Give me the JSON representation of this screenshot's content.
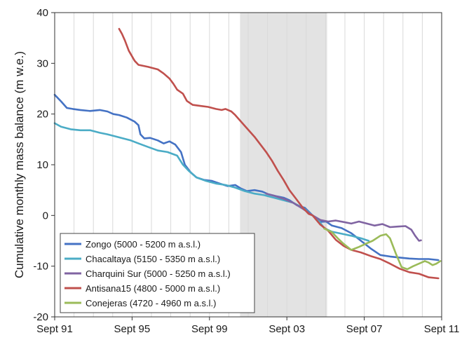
{
  "chart_data": {
    "type": "line",
    "title": "",
    "xlabel": "",
    "ylabel": "Cumulative monthly mass balance (m w.e.)",
    "xlim": [
      1991.67,
      2011.67
    ],
    "ylim": [
      -20,
      40
    ],
    "x_ticks": [
      {
        "value": 1991.67,
        "label": "Sept 91"
      },
      {
        "value": 1995.67,
        "label": "Sept 95"
      },
      {
        "value": 1999.67,
        "label": "Sept 99"
      },
      {
        "value": 2003.67,
        "label": "Sept 03"
      },
      {
        "value": 2007.67,
        "label": "Sept 07"
      },
      {
        "value": 2011.67,
        "label": "Sept 11"
      }
    ],
    "y_ticks": [
      -20,
      -10,
      0,
      10,
      20,
      30,
      40
    ],
    "y_tick_labels": [
      "-20",
      "-10",
      "0",
      "10",
      "20",
      "30",
      "40"
    ],
    "grid": "vertical-only",
    "shaded_region": [
      2001.25,
      2005.75
    ],
    "legend_position": "bottom-left",
    "series": [
      {
        "name": "Zongo (5000 - 5200 m a.s.l.)",
        "color": "#4472c4",
        "points": [
          [
            1991.67,
            23.8
          ],
          [
            1992.0,
            22.5
          ],
          [
            1992.3,
            21.2
          ],
          [
            1992.6,
            21.0
          ],
          [
            1993.0,
            20.8
          ],
          [
            1993.5,
            20.6
          ],
          [
            1994.0,
            20.8
          ],
          [
            1994.4,
            20.5
          ],
          [
            1994.7,
            20.0
          ],
          [
            1995.0,
            19.8
          ],
          [
            1995.4,
            19.3
          ],
          [
            1995.8,
            18.5
          ],
          [
            1996.0,
            17.8
          ],
          [
            1996.1,
            16.0
          ],
          [
            1996.3,
            15.2
          ],
          [
            1996.6,
            15.3
          ],
          [
            1997.0,
            14.8
          ],
          [
            1997.3,
            14.2
          ],
          [
            1997.6,
            14.6
          ],
          [
            1997.9,
            14.0
          ],
          [
            1998.2,
            12.5
          ],
          [
            1998.4,
            10.0
          ],
          [
            1998.7,
            8.5
          ],
          [
            1999.0,
            7.5
          ],
          [
            1999.4,
            7.0
          ],
          [
            1999.8,
            6.8
          ],
          [
            2000.2,
            6.3
          ],
          [
            2000.6,
            5.8
          ],
          [
            2001.0,
            6.0
          ],
          [
            2001.3,
            5.3
          ],
          [
            2001.6,
            4.8
          ],
          [
            2002.0,
            5.0
          ],
          [
            2002.4,
            4.7
          ],
          [
            2002.7,
            4.2
          ],
          [
            2003.1,
            3.8
          ],
          [
            2003.5,
            3.5
          ],
          [
            2003.8,
            3.0
          ],
          [
            2004.2,
            2.0
          ],
          [
            2004.6,
            1.5
          ],
          [
            2005.0,
            0.0
          ],
          [
            2005.3,
            -1.3
          ],
          [
            2005.7,
            -1.2
          ],
          [
            2006.0,
            -2.0
          ],
          [
            2006.5,
            -2.5
          ],
          [
            2007.0,
            -3.5
          ],
          [
            2007.5,
            -5.0
          ],
          [
            2008.0,
            -6.5
          ],
          [
            2008.5,
            -7.8
          ],
          [
            2009.0,
            -8.1
          ],
          [
            2009.5,
            -8.3
          ],
          [
            2010.0,
            -8.5
          ],
          [
            2010.5,
            -8.6
          ],
          [
            2011.0,
            -8.6
          ],
          [
            2011.5,
            -8.8
          ]
        ]
      },
      {
        "name": "Chacaltaya (5150 - 5350 m a.s.l.)",
        "color": "#4bacc6",
        "points": [
          [
            1991.67,
            18.2
          ],
          [
            1992.0,
            17.5
          ],
          [
            1992.5,
            17.0
          ],
          [
            1993.0,
            16.8
          ],
          [
            1993.5,
            16.8
          ],
          [
            1994.0,
            16.3
          ],
          [
            1994.4,
            16.0
          ],
          [
            1994.8,
            15.6
          ],
          [
            1995.2,
            15.2
          ],
          [
            1995.6,
            14.8
          ],
          [
            1996.0,
            14.2
          ],
          [
            1996.5,
            13.5
          ],
          [
            1997.0,
            12.8
          ],
          [
            1997.5,
            12.5
          ],
          [
            1998.0,
            11.8
          ],
          [
            1998.3,
            10.0
          ],
          [
            1998.6,
            8.8
          ],
          [
            1999.0,
            7.5
          ],
          [
            1999.5,
            6.8
          ],
          [
            2000.0,
            6.3
          ],
          [
            2000.5,
            6.0
          ],
          [
            2001.0,
            5.5
          ],
          [
            2001.5,
            4.8
          ],
          [
            2002.0,
            4.3
          ],
          [
            2002.5,
            4.0
          ],
          [
            2003.0,
            3.5
          ],
          [
            2003.5,
            3.0
          ],
          [
            2004.0,
            2.5
          ],
          [
            2004.5,
            1.5
          ],
          [
            2005.0,
            0.0
          ],
          [
            2005.3,
            -1.0
          ],
          [
            2005.6,
            -2.5
          ],
          [
            2006.0,
            -3.2
          ],
          [
            2006.5,
            -3.6
          ],
          [
            2007.0,
            -4.0
          ],
          [
            2007.5,
            -4.5
          ],
          [
            2007.9,
            -5.0
          ]
        ]
      },
      {
        "name": "Charquini Sur (5000 - 5250 m a.s.l.)",
        "color": "#8064a2",
        "points": [
          [
            2002.6,
            4.3
          ],
          [
            2003.0,
            3.9
          ],
          [
            2003.5,
            3.3
          ],
          [
            2004.0,
            2.5
          ],
          [
            2004.5,
            1.3
          ],
          [
            2005.0,
            0.0
          ],
          [
            2005.4,
            -0.9
          ],
          [
            2005.8,
            -1.2
          ],
          [
            2006.2,
            -1.0
          ],
          [
            2006.6,
            -1.3
          ],
          [
            2007.0,
            -1.6
          ],
          [
            2007.4,
            -1.2
          ],
          [
            2007.8,
            -1.6
          ],
          [
            2008.2,
            -2.0
          ],
          [
            2008.6,
            -1.7
          ],
          [
            2009.0,
            -2.3
          ],
          [
            2009.4,
            -2.2
          ],
          [
            2009.8,
            -2.1
          ],
          [
            2010.1,
            -2.8
          ],
          [
            2010.3,
            -4.0
          ],
          [
            2010.5,
            -5.0
          ],
          [
            2010.6,
            -4.9
          ]
        ]
      },
      {
        "name": "Antisana15 (4800 - 5000 m a.s.l.)",
        "color": "#c0504d",
        "points": [
          [
            1995.0,
            36.8
          ],
          [
            1995.15,
            35.8
          ],
          [
            1995.3,
            34.5
          ],
          [
            1995.5,
            32.5
          ],
          [
            1995.8,
            30.5
          ],
          [
            1996.0,
            29.7
          ],
          [
            1996.5,
            29.3
          ],
          [
            1997.0,
            28.8
          ],
          [
            1997.3,
            28.0
          ],
          [
            1997.6,
            27.0
          ],
          [
            1997.8,
            26.0
          ],
          [
            1998.0,
            24.8
          ],
          [
            1998.3,
            24.0
          ],
          [
            1998.5,
            22.6
          ],
          [
            1998.8,
            21.8
          ],
          [
            1999.2,
            21.6
          ],
          [
            1999.6,
            21.4
          ],
          [
            2000.0,
            21.0
          ],
          [
            2000.3,
            20.8
          ],
          [
            2000.5,
            21.0
          ],
          [
            2000.8,
            20.5
          ],
          [
            2001.0,
            19.8
          ],
          [
            2001.3,
            18.5
          ],
          [
            2001.6,
            17.2
          ],
          [
            2002.0,
            15.5
          ],
          [
            2002.3,
            14.0
          ],
          [
            2002.6,
            12.5
          ],
          [
            2002.9,
            10.8
          ],
          [
            2003.2,
            8.8
          ],
          [
            2003.5,
            7.0
          ],
          [
            2003.8,
            5.0
          ],
          [
            2004.1,
            3.5
          ],
          [
            2004.5,
            1.5
          ],
          [
            2004.8,
            0.3
          ],
          [
            2005.0,
            0.0
          ],
          [
            2005.4,
            -1.8
          ],
          [
            2005.8,
            -3.0
          ],
          [
            2006.2,
            -4.8
          ],
          [
            2006.6,
            -6.0
          ],
          [
            2007.0,
            -6.8
          ],
          [
            2007.5,
            -7.3
          ],
          [
            2008.0,
            -8.0
          ],
          [
            2008.5,
            -8.6
          ],
          [
            2009.0,
            -9.5
          ],
          [
            2009.5,
            -10.5
          ],
          [
            2010.0,
            -11.2
          ],
          [
            2010.5,
            -11.5
          ],
          [
            2011.0,
            -12.2
          ],
          [
            2011.5,
            -12.4
          ]
        ]
      },
      {
        "name": "Conejeras (4720 - 4960 m a.s.l.)",
        "color": "#9bbb59",
        "points": [
          [
            2005.6,
            -2.6
          ],
          [
            2006.0,
            -3.3
          ],
          [
            2006.3,
            -4.5
          ],
          [
            2006.6,
            -5.6
          ],
          [
            2007.0,
            -6.8
          ],
          [
            2007.4,
            -6.2
          ],
          [
            2007.8,
            -5.5
          ],
          [
            2008.1,
            -5.0
          ],
          [
            2008.5,
            -4.0
          ],
          [
            2008.8,
            -3.7
          ],
          [
            2009.0,
            -4.5
          ],
          [
            2009.3,
            -7.5
          ],
          [
            2009.6,
            -10.2
          ],
          [
            2009.9,
            -10.6
          ],
          [
            2010.2,
            -10.0
          ],
          [
            2010.5,
            -9.5
          ],
          [
            2010.8,
            -9.0
          ],
          [
            2011.0,
            -9.3
          ],
          [
            2011.2,
            -9.8
          ],
          [
            2011.4,
            -9.5
          ],
          [
            2011.6,
            -9.0
          ]
        ]
      }
    ]
  }
}
